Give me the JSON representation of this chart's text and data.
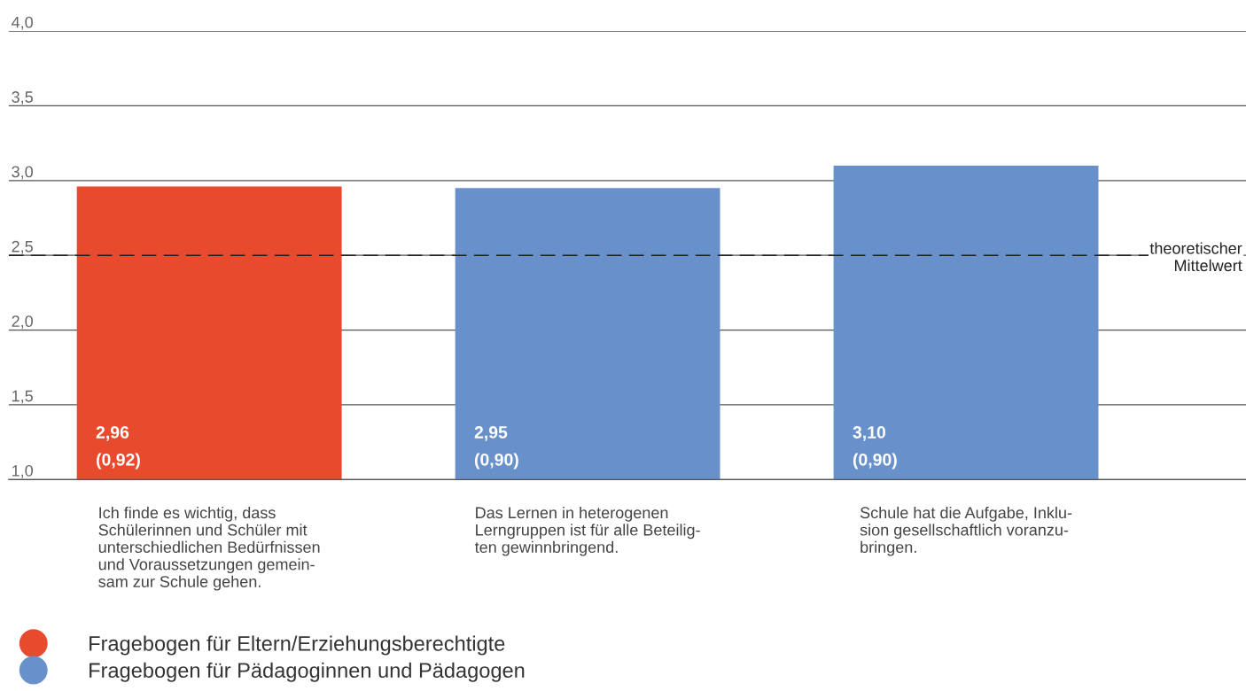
{
  "chart_data": {
    "type": "bar",
    "categories": [
      "Ich finde es wichtig, dass\nSchülerinnen und Schüler mit\nunterschiedlichen Bedürfnissen\nund Voraussetzungen gemein-\nsam zur Schule gehen.",
      "Das Lernen in heterogenen\nLerngruppen ist für alle Beteilig-\nten gewinnbringend.",
      "Schule hat die Aufgabe, Inklu-\nsion gesellschaftlich voranzu-\nbringen."
    ],
    "series": [
      {
        "name": "Fragebogen für Eltern/Erziehungsberechtigte",
        "color": "#e84a2e",
        "values": [
          2.96,
          null,
          null
        ],
        "value_labels": [
          "2,96\n(0,92)",
          null,
          null
        ]
      },
      {
        "name": "Fragebogen für Pädagoginnen und Pädagogen",
        "color": "#6891cb",
        "values": [
          null,
          2.95,
          3.1
        ],
        "value_labels": [
          null,
          "2,95\n(0,90)",
          "3,10\n(0,90)"
        ]
      }
    ],
    "ylim": [
      1.0,
      4.0
    ],
    "yticks": [
      {
        "value": 1.0,
        "label": "1,0"
      },
      {
        "value": 1.5,
        "label": "1,5"
      },
      {
        "value": 2.0,
        "label": "2,0"
      },
      {
        "value": 2.5,
        "label": "2,5"
      },
      {
        "value": 3.0,
        "label": "3,0"
      },
      {
        "value": 3.5,
        "label": "3,5"
      },
      {
        "value": 4.0,
        "label": "4,0"
      }
    ],
    "grid": "y",
    "legend": "bottom left",
    "ref_lines": [
      {
        "axis": "y",
        "value": 2.5,
        "label": "theoretischer\nMittelwert",
        "color": "#222222",
        "line_style": "dashed"
      }
    ]
  }
}
